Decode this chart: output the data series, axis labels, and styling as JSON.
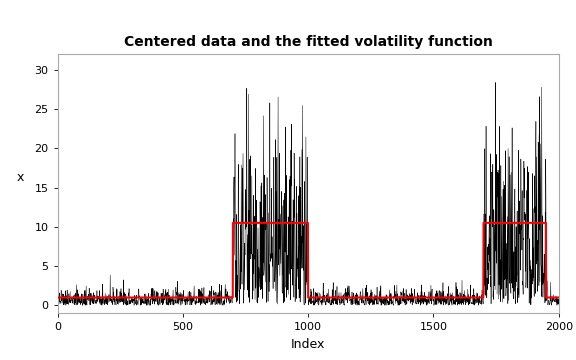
{
  "title": "Centered data and the fitted volatility function",
  "xlabel": "Index",
  "ylabel": "x",
  "n": 2000,
  "seed": 42,
  "segments": [
    {
      "start": 1,
      "end": 700,
      "sd": 1.0,
      "vol": 1.0
    },
    {
      "start": 700,
      "end": 1000,
      "sd": 10.5,
      "vol": 10.5
    },
    {
      "start": 1000,
      "end": 1700,
      "sd": 1.0,
      "vol": 1.0
    },
    {
      "start": 1700,
      "end": 1950,
      "sd": 10.5,
      "vol": 10.5
    },
    {
      "start": 1950,
      "end": 2000,
      "sd": 1.0,
      "vol": 1.0
    }
  ],
  "ylim": [
    -1,
    32
  ],
  "xlim": [
    0,
    2000
  ],
  "xticks": [
    0,
    500,
    1000,
    1500,
    2000
  ],
  "yticks": [
    0,
    5,
    10,
    15,
    20,
    25,
    30
  ],
  "line_color": "black",
  "vol_color": "red",
  "vol_lw": 1.5,
  "data_lw": 0.35,
  "plot_bg": "#ffffff",
  "fig_bg": "#ffffff",
  "border_color": "#aaaaaa",
  "title_fontsize": 10,
  "label_fontsize": 9,
  "tick_fontsize": 8
}
